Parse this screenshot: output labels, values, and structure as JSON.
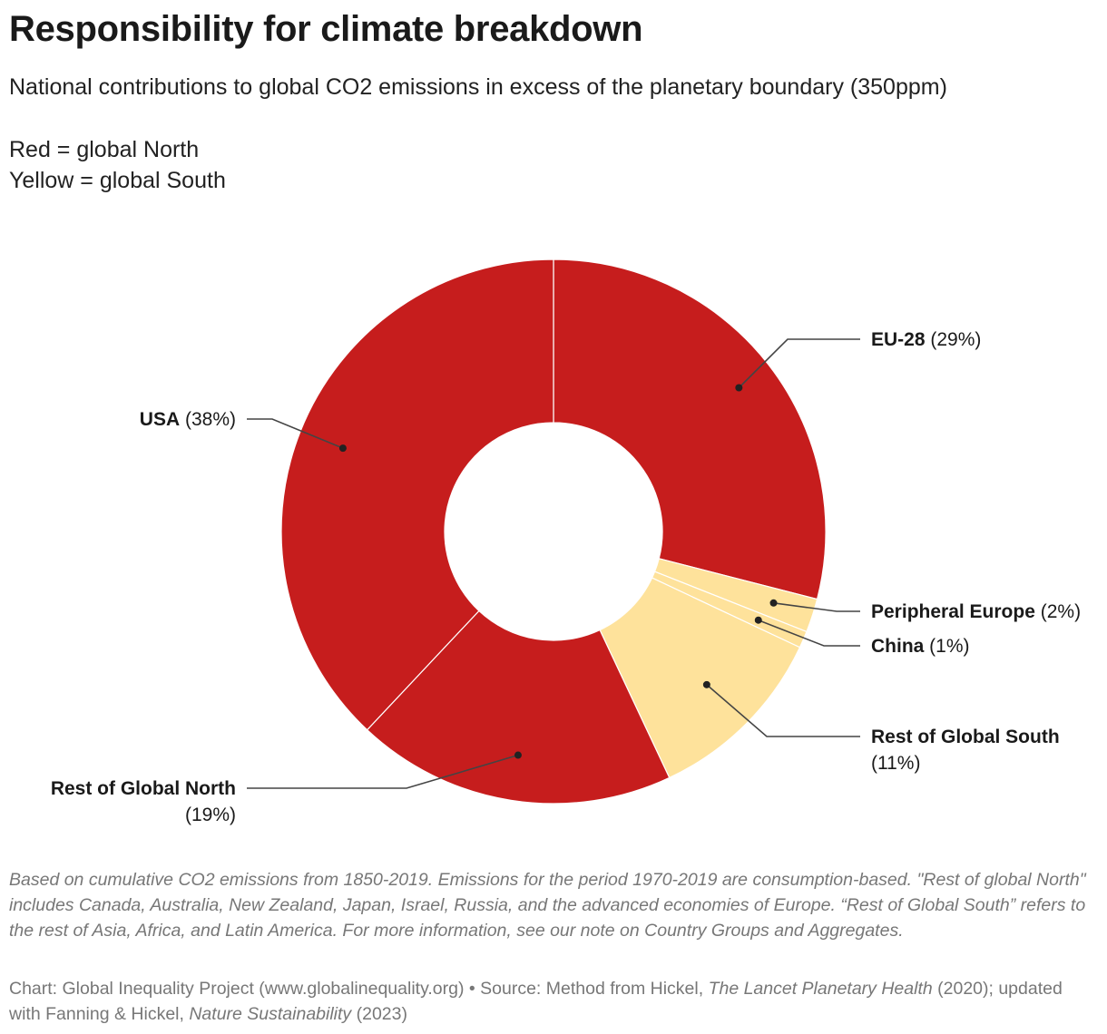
{
  "title": "Responsibility for climate breakdown",
  "subtitle": "National contributions to global CO2 emissions in excess of the planetary boundary (350ppm)",
  "legend_note": [
    "Red = global North",
    "Yellow = global South"
  ],
  "colors": {
    "north": "#c61d1d",
    "south": "#fee29b",
    "leader": "#444444"
  },
  "chart_data": {
    "type": "pie",
    "variant": "donut",
    "slices": [
      {
        "name": "EU-28",
        "pct_label": "(29%)",
        "value": 29,
        "group": "north"
      },
      {
        "name": "Peripheral Europe",
        "pct_label": "(2%)",
        "value": 2,
        "group": "south"
      },
      {
        "name": "China",
        "pct_label": "(1%)",
        "value": 1,
        "group": "south"
      },
      {
        "name": "Rest of Global South",
        "pct_label": "(11%)",
        "value": 11,
        "group": "south"
      },
      {
        "name": "Rest of Global North",
        "pct_label": "(19%)",
        "value": 19,
        "group": "north"
      },
      {
        "name": "USA",
        "pct_label": "(38%)",
        "value": 38,
        "group": "north"
      }
    ]
  },
  "notes": "Based on cumulative CO2 emissions from 1850-2019. Emissions for the period 1970-2019 are consumption-based. \"Rest of global North\" includes Canada, Australia, New Zealand, Japan, Israel, Russia, and the advanced economies of Europe. “Rest of Global South” refers to the rest of Asia, Africa, and Latin America. For more information, see our note on Country Groups and Aggregates.",
  "source": {
    "part1": "Chart: Global Inequality Project (www.globalinequality.org) • Source: Method from Hickel, ",
    "journal1": "The Lancet Planetary Health",
    "part2": " (2020); updated with Fanning & Hickel, ",
    "journal2": "Nature Sustainability",
    "part3": " (2023)"
  }
}
